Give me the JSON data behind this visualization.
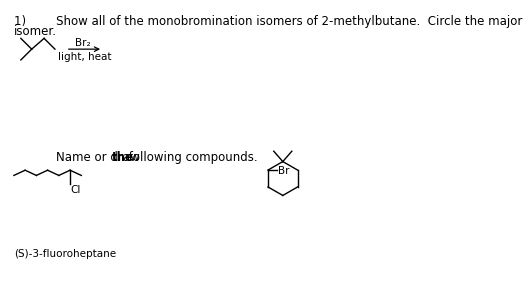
{
  "background_color": "#ffffff",
  "br2_label": "Br₂",
  "condition_label": "light, heat",
  "br_label": "Br",
  "cl_label": "Cl",
  "label_bottom": "(S)-3-fluoroheptane",
  "title_line1": "1)        Show all of the monobromination isomers of 2-methylbutane.  Circle the major",
  "title_line2": "isomer.",
  "q2_part1": "Name or draw ",
  "q2_part2": "the",
  "q2_part3": " following compounds."
}
